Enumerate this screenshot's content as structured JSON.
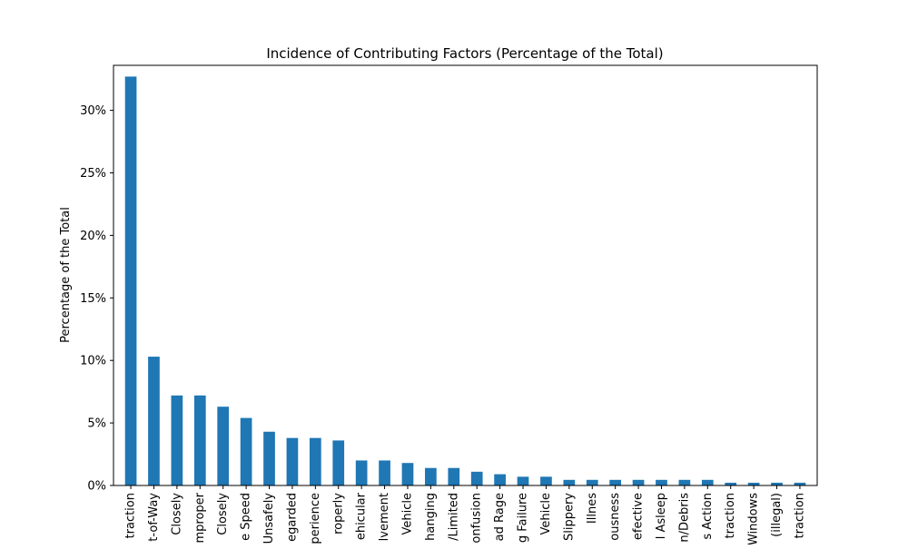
{
  "chart_data": {
    "type": "bar",
    "title": "Incidence of Contributing Factors (Percentage of the Total)",
    "xlabel": "",
    "ylabel": "Percentage of the Total",
    "ylim": [
      0,
      33.6
    ],
    "yticks": [
      0,
      5,
      10,
      15,
      20,
      25,
      30
    ],
    "ytick_labels": [
      "0%",
      "5%",
      "10%",
      "15%",
      "20%",
      "25%",
      "30%"
    ],
    "grid": false,
    "legend": "none",
    "bar_color": "#1f77b4",
    "categories": [
      "traction",
      "t-of-Way",
      "Closely",
      "mproper",
      "Closely",
      "e Speed",
      "Unsafely",
      "egarded",
      "perience",
      "roperly",
      "ehicular",
      "lvement",
      "Vehicle",
      "hanging",
      "/Limited",
      "onfusion",
      "ad Rage",
      "g Failure",
      "Vehicle",
      "Slippery",
      "Illnes",
      "ousness",
      "efective",
      "l Asleep",
      "n/Debris",
      "s Action",
      "traction",
      "Windows",
      "(illegal)",
      "traction"
    ],
    "values": [
      32.7,
      10.3,
      7.2,
      7.2,
      6.3,
      5.4,
      4.3,
      3.8,
      3.8,
      3.6,
      2.0,
      2.0,
      1.8,
      1.4,
      1.4,
      1.1,
      0.9,
      0.7,
      0.7,
      0.45,
      0.45,
      0.45,
      0.45,
      0.45,
      0.45,
      0.45,
      0.22,
      0.22,
      0.22,
      0.22
    ]
  }
}
